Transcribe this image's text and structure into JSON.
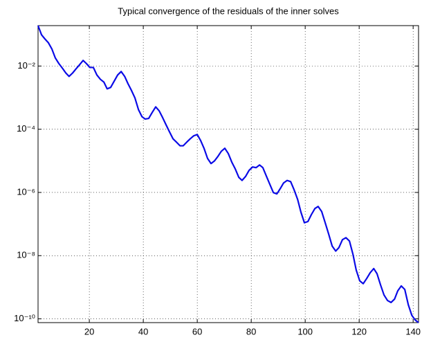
{
  "chart_data": {
    "type": "line",
    "title": "Typical convergence of the residuals of the inner solves",
    "x": [
      1,
      2.3,
      3.6,
      4.8,
      6.1,
      7.4,
      8.7,
      10,
      11.3,
      12.5,
      13.8,
      15.1,
      16.4,
      17.7,
      18.9,
      20.2,
      21.5,
      22.8,
      24.1,
      25.4,
      26.6,
      27.9,
      29.2,
      30.5,
      31.8,
      33.1,
      34.3,
      35.6,
      36.9,
      38.2,
      39.5,
      40.7,
      42,
      43.3,
      44.6,
      45.9,
      47.2,
      48.4,
      49.7,
      51,
      52.3,
      53.6,
      54.8,
      56.1,
      57.4,
      58.7,
      60,
      61.3,
      62.5,
      63.8,
      65.1,
      66.4,
      67.7,
      68.9,
      70.2,
      71.5,
      72.8,
      74.1,
      75.4,
      76.6,
      77.9,
      79.2,
      80.5,
      81.8,
      83.1,
      84.3,
      85.6,
      86.9,
      88.2,
      89.5,
      90.7,
      92,
      93.3,
      94.6,
      95.9,
      97.2,
      98.4,
      99.7,
      101,
      102.3,
      103.6,
      104.8,
      106.1,
      107.4,
      108.7,
      110,
      111.3,
      112.5,
      113.8,
      115.1,
      116.4,
      117.7,
      118.9,
      120.2,
      121.5,
      122.8,
      124.1,
      125.4,
      126.6,
      127.9,
      129.2,
      130.5,
      131.8,
      133.1,
      134.3,
      135.6,
      136.9,
      138.2,
      139.5,
      140.7,
      142
    ],
    "series": [
      {
        "color": "#0a0ae6",
        "values": [
          0.19,
          0.097,
          0.071,
          0.055,
          0.035,
          0.018,
          0.012,
          0.0086,
          0.006,
          0.0047,
          0.006,
          0.0082,
          0.011,
          0.015,
          0.012,
          0.009,
          0.009,
          0.0052,
          0.0038,
          0.0031,
          0.0019,
          0.0021,
          0.0033,
          0.0052,
          0.0067,
          0.0047,
          0.0028,
          0.0017,
          0.00098,
          0.00042,
          0.00025,
          0.00021,
          0.00022,
          0.00034,
          0.00051,
          0.00038,
          0.00023,
          0.00014,
          8.3e-05,
          5e-05,
          3.9e-05,
          3e-05,
          3e-05,
          3.9e-05,
          5e-05,
          6.2e-05,
          6.8e-05,
          4.3e-05,
          2.5e-05,
          1.2e-05,
          8.2e-06,
          1e-05,
          1.4e-05,
          2e-05,
          2.5e-05,
          1.7e-05,
          9.1e-06,
          5.5e-06,
          3e-06,
          2.4e-06,
          3.2e-06,
          5e-06,
          6.4e-06,
          6.1e-06,
          7.4e-06,
          6.1e-06,
          3.3e-06,
          1.8e-06,
          9.9e-07,
          9e-07,
          1.3e-06,
          2e-06,
          2.4e-06,
          2.2e-06,
          1.2e-06,
          6e-07,
          2.4e-07,
          1.1e-07,
          1.2e-07,
          2e-07,
          3.1e-07,
          3.6e-07,
          2.5e-07,
          1.1e-07,
          4.8e-08,
          2e-08,
          1.4e-08,
          1.8e-08,
          3.2e-08,
          3.7e-08,
          2.9e-08,
          1.1e-08,
          3.5e-09,
          1.6e-09,
          1.3e-09,
          1.9e-09,
          2.9e-09,
          3.9e-09,
          2.7e-09,
          1.2e-09,
          5.7e-10,
          3.8e-10,
          3.3e-10,
          4.2e-10,
          7.7e-10,
          1.1e-09,
          8.5e-10,
          2.8e-10,
          1.3e-10,
          9.3e-11,
          7.6e-11
        ]
      }
    ],
    "xlim": [
      1,
      142
    ],
    "xticks": [
      20,
      40,
      60,
      80,
      100,
      120,
      140
    ],
    "ylim": [
      7.6e-11,
      0.19
    ],
    "ylog": true,
    "yticks": [
      {
        "value": 0.01,
        "label": "10⁻²"
      },
      {
        "value": 0.0001,
        "label": "10⁻⁴"
      },
      {
        "value": 1e-06,
        "label": "10⁻⁶"
      },
      {
        "value": 1e-08,
        "label": "10⁻⁸"
      },
      {
        "value": 1e-10,
        "label": "10⁻¹⁰"
      }
    ],
    "grid": true
  }
}
